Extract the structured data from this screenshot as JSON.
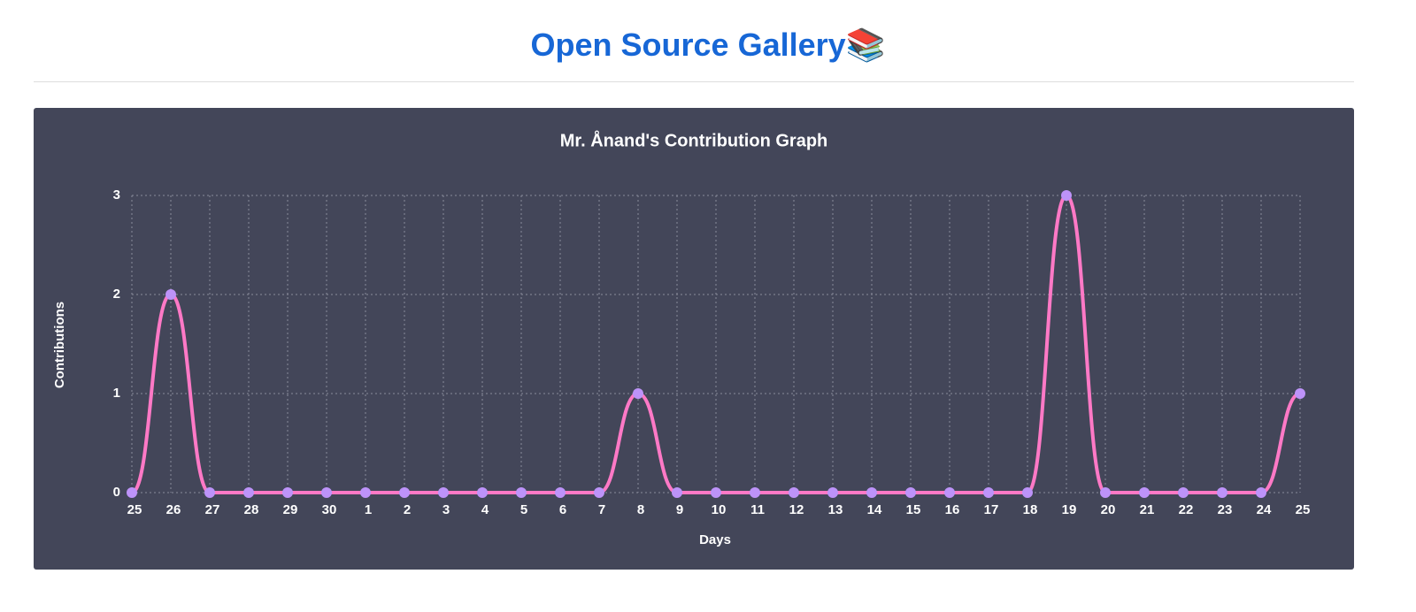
{
  "header": {
    "title": "Open Source Gallery📚"
  },
  "chart_data": {
    "type": "line",
    "title": "Mr. Ånand's Contribution Graph",
    "xlabel": "Days",
    "ylabel": "Contributions",
    "categories": [
      "25",
      "26",
      "27",
      "28",
      "29",
      "30",
      "1",
      "2",
      "3",
      "4",
      "5",
      "6",
      "7",
      "8",
      "9",
      "10",
      "11",
      "12",
      "13",
      "14",
      "15",
      "16",
      "17",
      "18",
      "19",
      "20",
      "21",
      "22",
      "23",
      "24",
      "25"
    ],
    "values": [
      0,
      2,
      0,
      0,
      0,
      0,
      0,
      0,
      0,
      0,
      0,
      0,
      0,
      1,
      0,
      0,
      0,
      0,
      0,
      0,
      0,
      0,
      0,
      0,
      3,
      0,
      0,
      0,
      0,
      0,
      1
    ],
    "color": "#ff79c6",
    "point_color": "#bd93f9",
    "ylim": [
      0,
      3
    ],
    "yticks": [
      0,
      1,
      2,
      3
    ],
    "grid": true
  }
}
